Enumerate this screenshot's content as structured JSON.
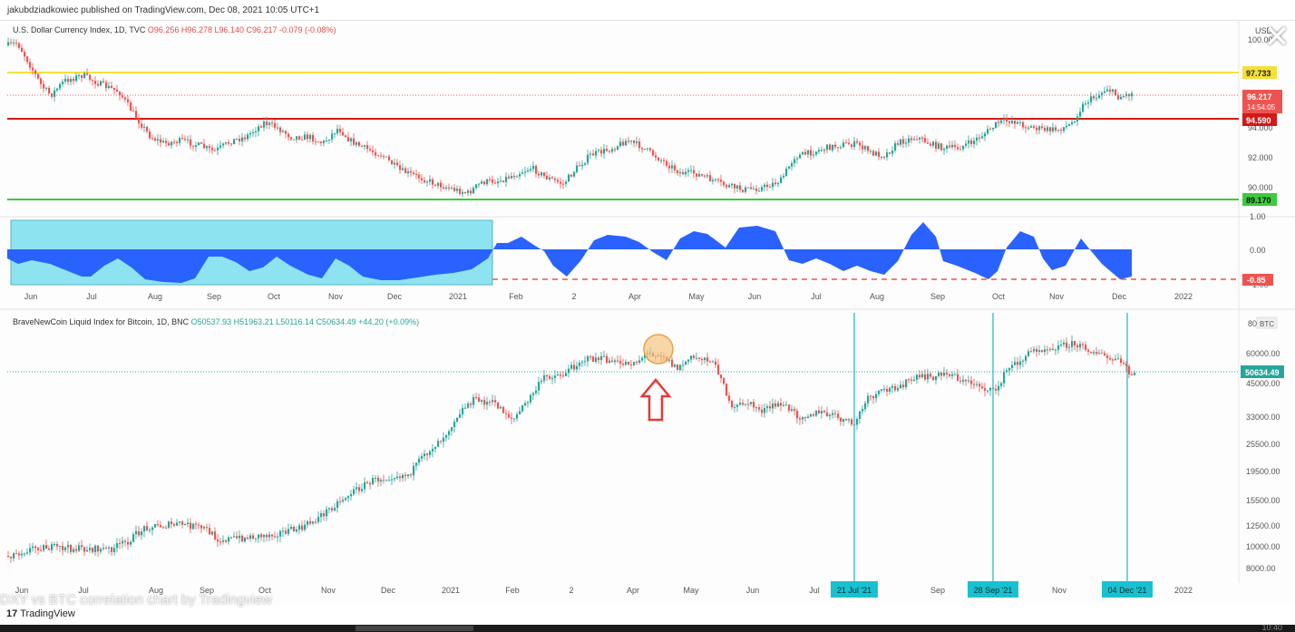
{
  "header": {
    "published": "jakubdziadkowiec published on TradingView.com, Dec 08, 2021 10:05 UTC+1"
  },
  "dxy": {
    "legend_title": "U.S. Dollar Currency Index, 1D, TVC",
    "legend_ohlc": "O96.256  H96.278  L96.140  C96.217  -0.079 (-0.08%)",
    "currency_label": "USD",
    "price_ticks": [
      "100.00",
      "94.000",
      "92.000",
      "90.000"
    ],
    "lines": {
      "yellow": "97.733",
      "red": "94.590",
      "green": "89.170"
    },
    "last_price": "96.217",
    "countdown": "14:54:05"
  },
  "correlation": {
    "ticks": [
      "1.00",
      "0.00",
      "-1.00"
    ],
    "last_value": "-0.85"
  },
  "btc": {
    "legend_title": "BraveNewCoin Liquid Index for Bitcoin, 1D, BNC",
    "legend_ohlc": "O50537.93  H51963.21  L50116.14  C50634.49  +44.20 (+0.09%)",
    "currency_label": "BTC",
    "price_ticks": [
      "80",
      "60000.00",
      "45000.00",
      "33000.00",
      "25500.00",
      "19500.00",
      "15500.00",
      "12500.00",
      "10000.00",
      "8000.00"
    ],
    "last_price": "50634.49",
    "markers": [
      "21 Jul '21",
      "28 Sep '21",
      "04 Dec '21"
    ]
  },
  "time_axis_top": [
    "Jun",
    "Jul",
    "Aug",
    "Sep",
    "Oct",
    "Nov",
    "Dec",
    "2021",
    "Feb",
    "2",
    "Apr",
    "May",
    "Jun",
    "Jul",
    "Aug",
    "Sep",
    "Oct",
    "Nov",
    "Dec",
    "2022"
  ],
  "time_axis_bottom": [
    "Jun",
    "Jul",
    "Aug",
    "Sep",
    "Oct",
    "Nov",
    "Dec",
    "2021",
    "Feb",
    "2",
    "Apr",
    "May",
    "Jun",
    "Jul",
    "g",
    "Sep",
    "Nov",
    "2022"
  ],
  "footer": {
    "caption": "DXY vs BTC correlation chart by Tradingview",
    "brand": "TradingView",
    "clock": "10:40"
  },
  "colors": {
    "yellow_line": "#f5e03a",
    "red_line": "#d11a1a",
    "green_line": "#3ccb3c",
    "up": "#26a69a",
    "down": "#ef5350",
    "correlation_fill": "#2962ff",
    "highlight_box": "#8de3f0",
    "marker_line": "#17b8c8",
    "marker_label": "#19c0d0",
    "price_label_red": "#ef5350",
    "arrow": "#e53935",
    "circle_fill": "#f5c27a"
  }
}
